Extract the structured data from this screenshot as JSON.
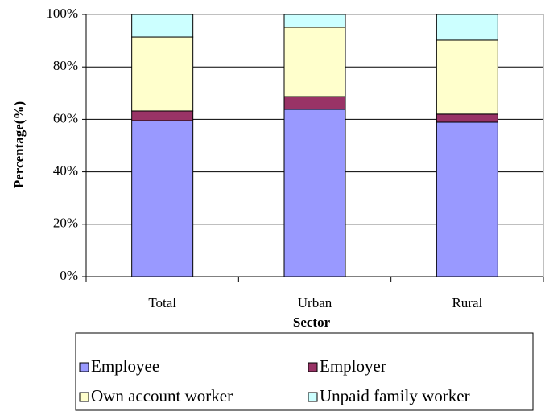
{
  "chart_data": {
    "type": "stacked_bar_100",
    "x_label": "Sector",
    "y_label": "Percentage(%)",
    "categories": [
      "Total",
      "Urban",
      "Rural"
    ],
    "series": [
      {
        "name": "Employee",
        "color": "#9999ff",
        "values": [
          59.5,
          63.8,
          58.9
        ]
      },
      {
        "name": "Employer",
        "color": "#993366",
        "values": [
          3.7,
          4.9,
          3.1
        ]
      },
      {
        "name": "Own account worker",
        "color": "#ffffcc",
        "values": [
          28.2,
          26.4,
          28.2
        ]
      },
      {
        "name": "Unpaid family worker",
        "color": "#ccffff",
        "values": [
          8.6,
          4.9,
          9.8
        ]
      }
    ],
    "ylim": [
      0,
      100
    ],
    "yticks": [
      {
        "value": 0,
        "label": "0%"
      },
      {
        "value": 20,
        "label": "20%"
      },
      {
        "value": 40,
        "label": "40%"
      },
      {
        "value": 60,
        "label": "60%"
      },
      {
        "value": 80,
        "label": "80%"
      },
      {
        "value": 100,
        "label": "100%"
      }
    ],
    "grid": true
  }
}
